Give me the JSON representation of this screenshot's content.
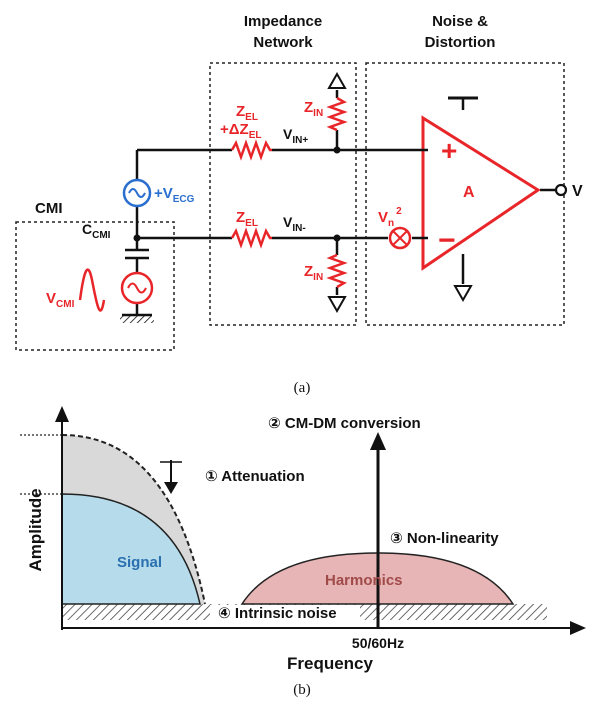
{
  "circuit": {
    "headers": {
      "impedance_1": "Impedance",
      "impedance_2": "Network",
      "noise_1": "Noise &",
      "noise_2": "Distortion",
      "cmi": "CMI"
    },
    "labels": {
      "zel_top_1": "Z",
      "zel_top_1_sub": "EL",
      "zel_top_2": "+ΔZ",
      "zel_top_2_sub": "EL",
      "zel_bot": "Z",
      "zel_bot_sub": "EL",
      "zin_top": "Z",
      "zin_top_sub": "IN",
      "zin_bot": "Z",
      "zin_bot_sub": "IN",
      "vin_plus": "V",
      "vin_plus_sub": "IN+",
      "vin_minus": "V",
      "vin_minus_sub": "IN-",
      "vecg": "+V",
      "vecg_sub": "ECG",
      "ccmi": "C",
      "ccmi_sub": "CMI",
      "vcmi": "V",
      "vcmi_sub": "CMI",
      "vn": "V",
      "vn_sub": "n",
      "vn_sup": "2",
      "amp": "A",
      "out": "V",
      "plus": "+",
      "minus": "−"
    },
    "caption": "(a)"
  },
  "spectrum": {
    "ylabel": "Amplitude",
    "xlabel": "Frequency",
    "ann_conversion": "② CM-DM conversion",
    "ann_attenuation": "① Attenuation",
    "ann_nonlinearity": "③ Non-linearity",
    "ann_noise": "④ Intrinsic noise",
    "signal": "Signal",
    "harmonics": "Harmonics",
    "freq_mark": "50/60Hz",
    "caption": "(b)",
    "colors": {
      "signal": "#b6dceb",
      "attenuated": "#d9d9d9",
      "harmonics": "#e7b5b5",
      "harmonics_text": "#a14a4a",
      "signal_text": "#2a6fb0"
    }
  }
}
